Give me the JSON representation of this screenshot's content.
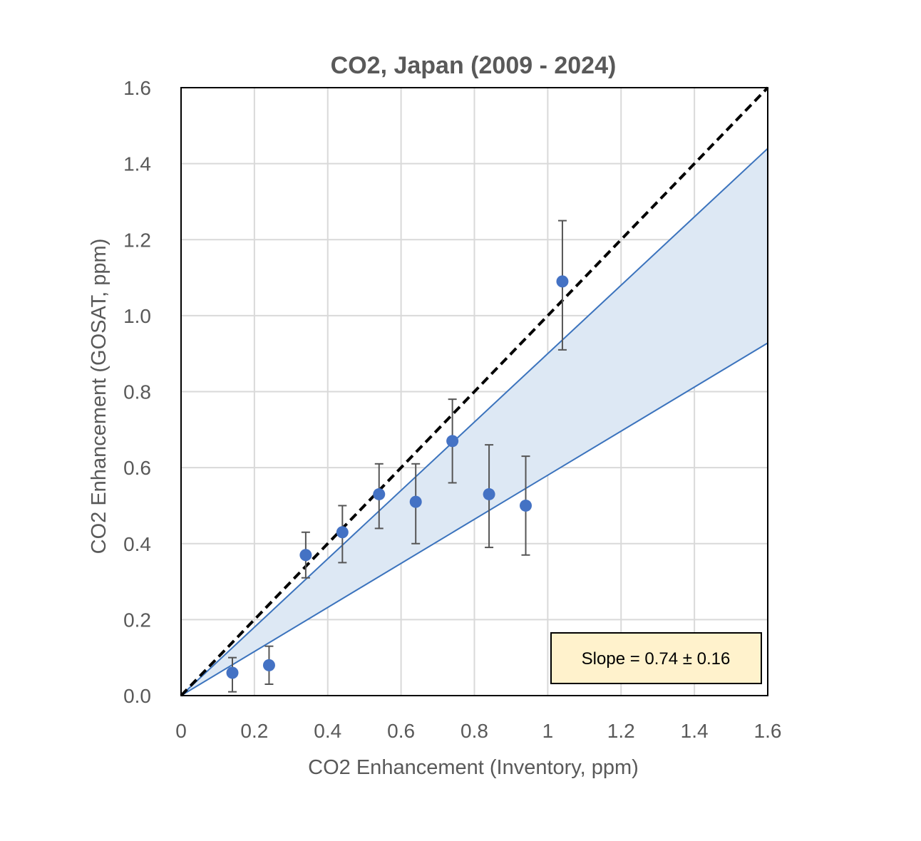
{
  "chart_data": {
    "type": "scatter",
    "title": "CO2, Japan (2009 - 2024)",
    "xlabel": "CO2 Enhancement (Inventory, ppm)",
    "ylabel": "CO2 Enhancement (GOSAT, ppm)",
    "xlim": [
      0,
      1.6
    ],
    "ylim": [
      0,
      1.6
    ],
    "x_ticks": [
      "0",
      "0.2",
      "0.4",
      "0.6",
      "0.8",
      "1",
      "1.2",
      "1.4",
      "1.6"
    ],
    "y_ticks": [
      "0.0",
      "0.2",
      "0.4",
      "0.6",
      "0.8",
      "1.0",
      "1.2",
      "1.4",
      "1.6"
    ],
    "grid": true,
    "series": [
      {
        "x": [
          0.14,
          0.24,
          0.34,
          0.44,
          0.54,
          0.64,
          0.74,
          0.84,
          0.94,
          1.04
        ],
        "y": [
          0.06,
          0.08,
          0.37,
          0.43,
          0.53,
          0.51,
          0.67,
          0.53,
          0.5,
          1.09
        ],
        "err_low": [
          0.05,
          0.05,
          0.06,
          0.08,
          0.09,
          0.11,
          0.11,
          0.14,
          0.13,
          0.18
        ],
        "err_high": [
          0.04,
          0.05,
          0.06,
          0.07,
          0.08,
          0.1,
          0.11,
          0.13,
          0.13,
          0.16
        ]
      }
    ],
    "reference_line": {
      "slope": 1.0,
      "style": "dashed",
      "color": "#000000"
    },
    "slope_band": {
      "center": 0.74,
      "uncertainty": 0.16,
      "lower_slope": 0.58,
      "upper_slope": 0.9
    },
    "annotation": {
      "text": "Slope = 0.74 ± 0.16"
    },
    "colors": {
      "marker": "#4472c4",
      "band_fill": "#dde8f4",
      "band_line": "#3b73bd",
      "errorbar": "#555555",
      "grid": "#d9d9d9",
      "annotation_bg": "#fff2cc"
    }
  }
}
